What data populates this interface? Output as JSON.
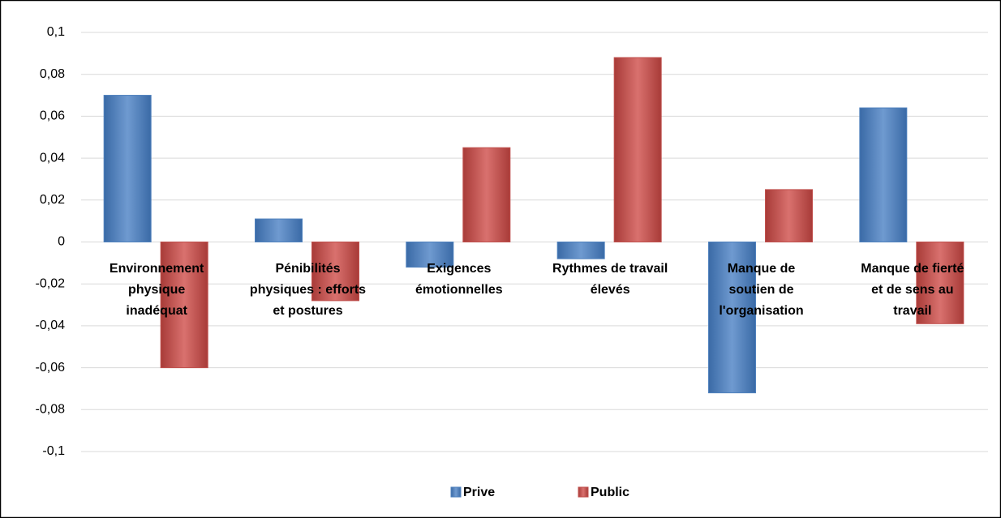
{
  "chart_data": {
    "type": "bar",
    "categories": [
      "Environnement physique inadéquat",
      "Pénibilités physiques : efforts et postures",
      "Exigences émotionnelles",
      "Rythmes de travail élevés",
      "Manque de soutien de l'organisation",
      "Manque de fierté et de sens au travail"
    ],
    "series": [
      {
        "name": "Prive",
        "color": "#4f81bd",
        "values": [
          0.07,
          0.011,
          -0.012,
          -0.008,
          -0.072,
          0.064
        ]
      },
      {
        "name": "Public",
        "color": "#c0504d",
        "values": [
          -0.06,
          -0.028,
          0.045,
          0.088,
          0.025,
          -0.039
        ]
      }
    ],
    "ylim": [
      -0.1,
      0.1
    ],
    "yticks": [
      {
        "value": -0.1,
        "label": "-0,1"
      },
      {
        "value": -0.08,
        "label": "-0,08"
      },
      {
        "value": -0.06,
        "label": "-0,06"
      },
      {
        "value": -0.04,
        "label": "-0,04"
      },
      {
        "value": -0.02,
        "label": "-0,02"
      },
      0,
      {
        "value": 0.02,
        "label": "0,02"
      },
      {
        "value": 0.04,
        "label": "0,04"
      },
      {
        "value": 0.06,
        "label": "0,06"
      },
      {
        "value": 0.08,
        "label": "0,08"
      },
      {
        "value": 0.1,
        "label": "0,1"
      }
    ],
    "grid": true,
    "legend": "bottom"
  }
}
